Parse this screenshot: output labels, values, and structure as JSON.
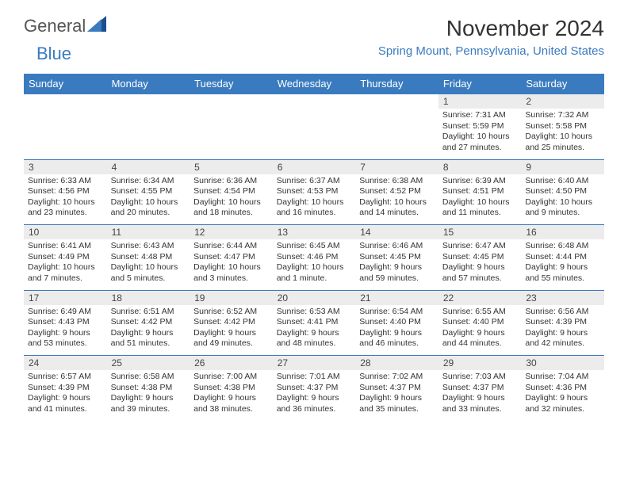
{
  "brand": {
    "name1": "General",
    "name2": "Blue"
  },
  "title": "November 2024",
  "location": "Spring Mount, Pennsylvania, United States",
  "colors": {
    "header_bg": "#3a7bbf",
    "header_text": "#ffffff",
    "daynum_bg": "#ececec",
    "border": "#3a7bbf",
    "location_text": "#3a7bbf",
    "body_text": "#333333",
    "logo_gray": "#555555"
  },
  "day_headers": [
    "Sunday",
    "Monday",
    "Tuesday",
    "Wednesday",
    "Thursday",
    "Friday",
    "Saturday"
  ],
  "weeks": [
    [
      {
        "n": "",
        "sr": "",
        "ss": "",
        "dl": ""
      },
      {
        "n": "",
        "sr": "",
        "ss": "",
        "dl": ""
      },
      {
        "n": "",
        "sr": "",
        "ss": "",
        "dl": ""
      },
      {
        "n": "",
        "sr": "",
        "ss": "",
        "dl": ""
      },
      {
        "n": "",
        "sr": "",
        "ss": "",
        "dl": ""
      },
      {
        "n": "1",
        "sr": "Sunrise: 7:31 AM",
        "ss": "Sunset: 5:59 PM",
        "dl": "Daylight: 10 hours and 27 minutes."
      },
      {
        "n": "2",
        "sr": "Sunrise: 7:32 AM",
        "ss": "Sunset: 5:58 PM",
        "dl": "Daylight: 10 hours and 25 minutes."
      }
    ],
    [
      {
        "n": "3",
        "sr": "Sunrise: 6:33 AM",
        "ss": "Sunset: 4:56 PM",
        "dl": "Daylight: 10 hours and 23 minutes."
      },
      {
        "n": "4",
        "sr": "Sunrise: 6:34 AM",
        "ss": "Sunset: 4:55 PM",
        "dl": "Daylight: 10 hours and 20 minutes."
      },
      {
        "n": "5",
        "sr": "Sunrise: 6:36 AM",
        "ss": "Sunset: 4:54 PM",
        "dl": "Daylight: 10 hours and 18 minutes."
      },
      {
        "n": "6",
        "sr": "Sunrise: 6:37 AM",
        "ss": "Sunset: 4:53 PM",
        "dl": "Daylight: 10 hours and 16 minutes."
      },
      {
        "n": "7",
        "sr": "Sunrise: 6:38 AM",
        "ss": "Sunset: 4:52 PM",
        "dl": "Daylight: 10 hours and 14 minutes."
      },
      {
        "n": "8",
        "sr": "Sunrise: 6:39 AM",
        "ss": "Sunset: 4:51 PM",
        "dl": "Daylight: 10 hours and 11 minutes."
      },
      {
        "n": "9",
        "sr": "Sunrise: 6:40 AM",
        "ss": "Sunset: 4:50 PM",
        "dl": "Daylight: 10 hours and 9 minutes."
      }
    ],
    [
      {
        "n": "10",
        "sr": "Sunrise: 6:41 AM",
        "ss": "Sunset: 4:49 PM",
        "dl": "Daylight: 10 hours and 7 minutes."
      },
      {
        "n": "11",
        "sr": "Sunrise: 6:43 AM",
        "ss": "Sunset: 4:48 PM",
        "dl": "Daylight: 10 hours and 5 minutes."
      },
      {
        "n": "12",
        "sr": "Sunrise: 6:44 AM",
        "ss": "Sunset: 4:47 PM",
        "dl": "Daylight: 10 hours and 3 minutes."
      },
      {
        "n": "13",
        "sr": "Sunrise: 6:45 AM",
        "ss": "Sunset: 4:46 PM",
        "dl": "Daylight: 10 hours and 1 minute."
      },
      {
        "n": "14",
        "sr": "Sunrise: 6:46 AM",
        "ss": "Sunset: 4:45 PM",
        "dl": "Daylight: 9 hours and 59 minutes."
      },
      {
        "n": "15",
        "sr": "Sunrise: 6:47 AM",
        "ss": "Sunset: 4:45 PM",
        "dl": "Daylight: 9 hours and 57 minutes."
      },
      {
        "n": "16",
        "sr": "Sunrise: 6:48 AM",
        "ss": "Sunset: 4:44 PM",
        "dl": "Daylight: 9 hours and 55 minutes."
      }
    ],
    [
      {
        "n": "17",
        "sr": "Sunrise: 6:49 AM",
        "ss": "Sunset: 4:43 PM",
        "dl": "Daylight: 9 hours and 53 minutes."
      },
      {
        "n": "18",
        "sr": "Sunrise: 6:51 AM",
        "ss": "Sunset: 4:42 PM",
        "dl": "Daylight: 9 hours and 51 minutes."
      },
      {
        "n": "19",
        "sr": "Sunrise: 6:52 AM",
        "ss": "Sunset: 4:42 PM",
        "dl": "Daylight: 9 hours and 49 minutes."
      },
      {
        "n": "20",
        "sr": "Sunrise: 6:53 AM",
        "ss": "Sunset: 4:41 PM",
        "dl": "Daylight: 9 hours and 48 minutes."
      },
      {
        "n": "21",
        "sr": "Sunrise: 6:54 AM",
        "ss": "Sunset: 4:40 PM",
        "dl": "Daylight: 9 hours and 46 minutes."
      },
      {
        "n": "22",
        "sr": "Sunrise: 6:55 AM",
        "ss": "Sunset: 4:40 PM",
        "dl": "Daylight: 9 hours and 44 minutes."
      },
      {
        "n": "23",
        "sr": "Sunrise: 6:56 AM",
        "ss": "Sunset: 4:39 PM",
        "dl": "Daylight: 9 hours and 42 minutes."
      }
    ],
    [
      {
        "n": "24",
        "sr": "Sunrise: 6:57 AM",
        "ss": "Sunset: 4:39 PM",
        "dl": "Daylight: 9 hours and 41 minutes."
      },
      {
        "n": "25",
        "sr": "Sunrise: 6:58 AM",
        "ss": "Sunset: 4:38 PM",
        "dl": "Daylight: 9 hours and 39 minutes."
      },
      {
        "n": "26",
        "sr": "Sunrise: 7:00 AM",
        "ss": "Sunset: 4:38 PM",
        "dl": "Daylight: 9 hours and 38 minutes."
      },
      {
        "n": "27",
        "sr": "Sunrise: 7:01 AM",
        "ss": "Sunset: 4:37 PM",
        "dl": "Daylight: 9 hours and 36 minutes."
      },
      {
        "n": "28",
        "sr": "Sunrise: 7:02 AM",
        "ss": "Sunset: 4:37 PM",
        "dl": "Daylight: 9 hours and 35 minutes."
      },
      {
        "n": "29",
        "sr": "Sunrise: 7:03 AM",
        "ss": "Sunset: 4:37 PM",
        "dl": "Daylight: 9 hours and 33 minutes."
      },
      {
        "n": "30",
        "sr": "Sunrise: 7:04 AM",
        "ss": "Sunset: 4:36 PM",
        "dl": "Daylight: 9 hours and 32 minutes."
      }
    ]
  ]
}
